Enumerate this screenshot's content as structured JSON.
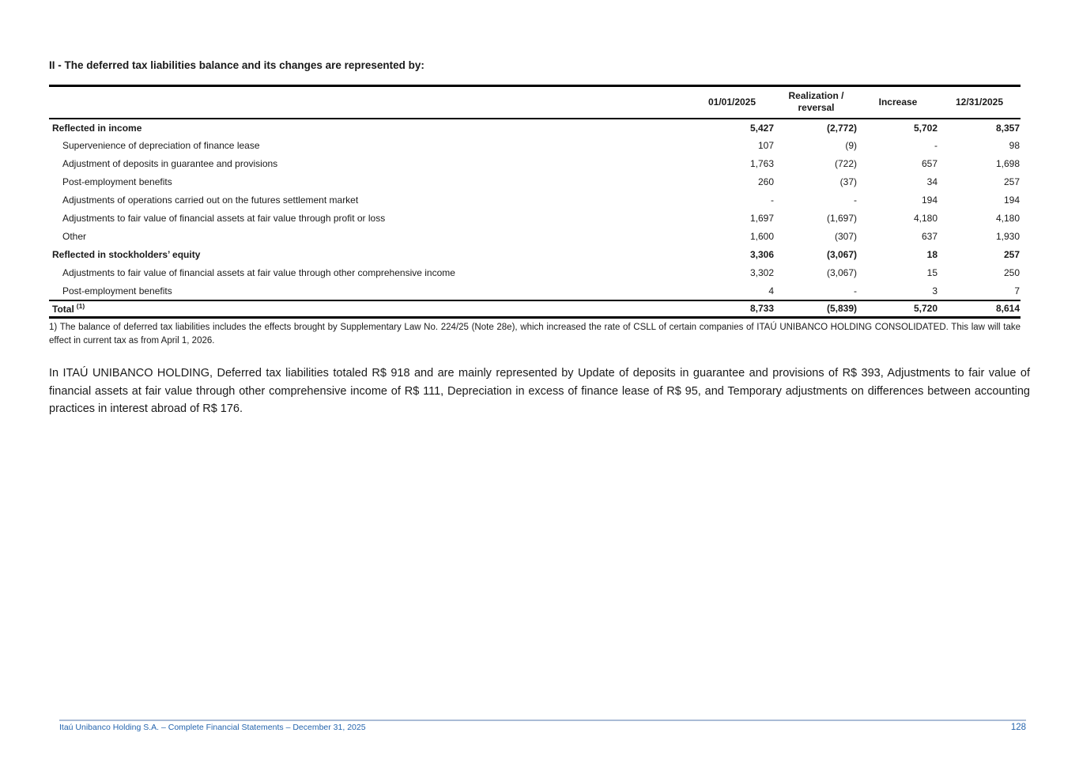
{
  "page": {
    "title": "II - The deferred tax liabilities balance and its changes are represented by:",
    "footnote": "1) The balance of deferred tax liabilities includes the effects brought by Supplementary Law No. 224/25 (Note 28e), which increased the rate of CSLL of certain companies of ITAÚ UNIBANCO HOLDING CONSOLIDATED. This law will take effect in current tax as from April 1, 2026.",
    "paragraph": "In ITAÚ UNIBANCO HOLDING, Deferred tax liabilities totaled R$ 918 and are mainly represented by Update of deposits in guarantee and provisions of R$ 393, Adjustments to fair value of financial assets at fair value through other comprehensive income of R$ 111, Depreciation in excess of finance lease of R$ 95, and Temporary adjustments on differences between accounting practices in interest abroad of R$ 176.",
    "footer": {
      "left_text": "Itaú Unibanco Holding S.A. – Complete Financial Statements – December 31, 2025",
      "page_number": "128"
    }
  },
  "colors": {
    "footer_text": "#2565ae",
    "footer_line": "#aabcd6",
    "table_border": "#000000"
  },
  "table": {
    "columns": [
      "01/01/2025",
      "Realization / reversal",
      "Increase",
      "12/31/2025"
    ],
    "rows": [
      {
        "label": "Reflected in income",
        "style": "bold",
        "values": [
          "5,427",
          "(2,772)",
          "5,702",
          "8,357"
        ]
      },
      {
        "label": "Supervenience of depreciation of finance lease",
        "style": "sub",
        "values": [
          "107",
          "(9)",
          "-",
          "98"
        ]
      },
      {
        "label": "Adjustment of deposits in guarantee and provisions",
        "style": "sub",
        "values": [
          "1,763",
          "(722)",
          "657",
          "1,698"
        ]
      },
      {
        "label": "Post-employment benefits",
        "style": "sub",
        "values": [
          "260",
          "(37)",
          "34",
          "257"
        ]
      },
      {
        "label": "Adjustments of operations carried out on the futures settlement market",
        "style": "sub",
        "values": [
          "-",
          "-",
          "194",
          "194"
        ]
      },
      {
        "label": "Adjustments to fair value of financial assets at fair value through profit or loss",
        "style": "sub",
        "values": [
          "1,697",
          "(1,697)",
          "4,180",
          "4,180"
        ]
      },
      {
        "label": "Other",
        "style": "sub",
        "values": [
          "1,600",
          "(307)",
          "637",
          "1,930"
        ]
      },
      {
        "label": "Reflected in stockholders’ equity",
        "style": "bold",
        "values": [
          "3,306",
          "(3,067)",
          "18",
          "257"
        ]
      },
      {
        "label": "Adjustments to fair value of financial assets at fair value through other comprehensive income",
        "style": "sub",
        "values": [
          "3,302",
          "(3,067)",
          "15",
          "250"
        ]
      },
      {
        "label": "Post-employment benefits",
        "style": "sub",
        "values": [
          "4",
          "-",
          "3",
          "7"
        ]
      },
      {
        "label": "Total",
        "sup": "(1)",
        "style": "total",
        "values": [
          "8,733",
          "(5,839)",
          "5,720",
          "8,614"
        ]
      }
    ]
  }
}
